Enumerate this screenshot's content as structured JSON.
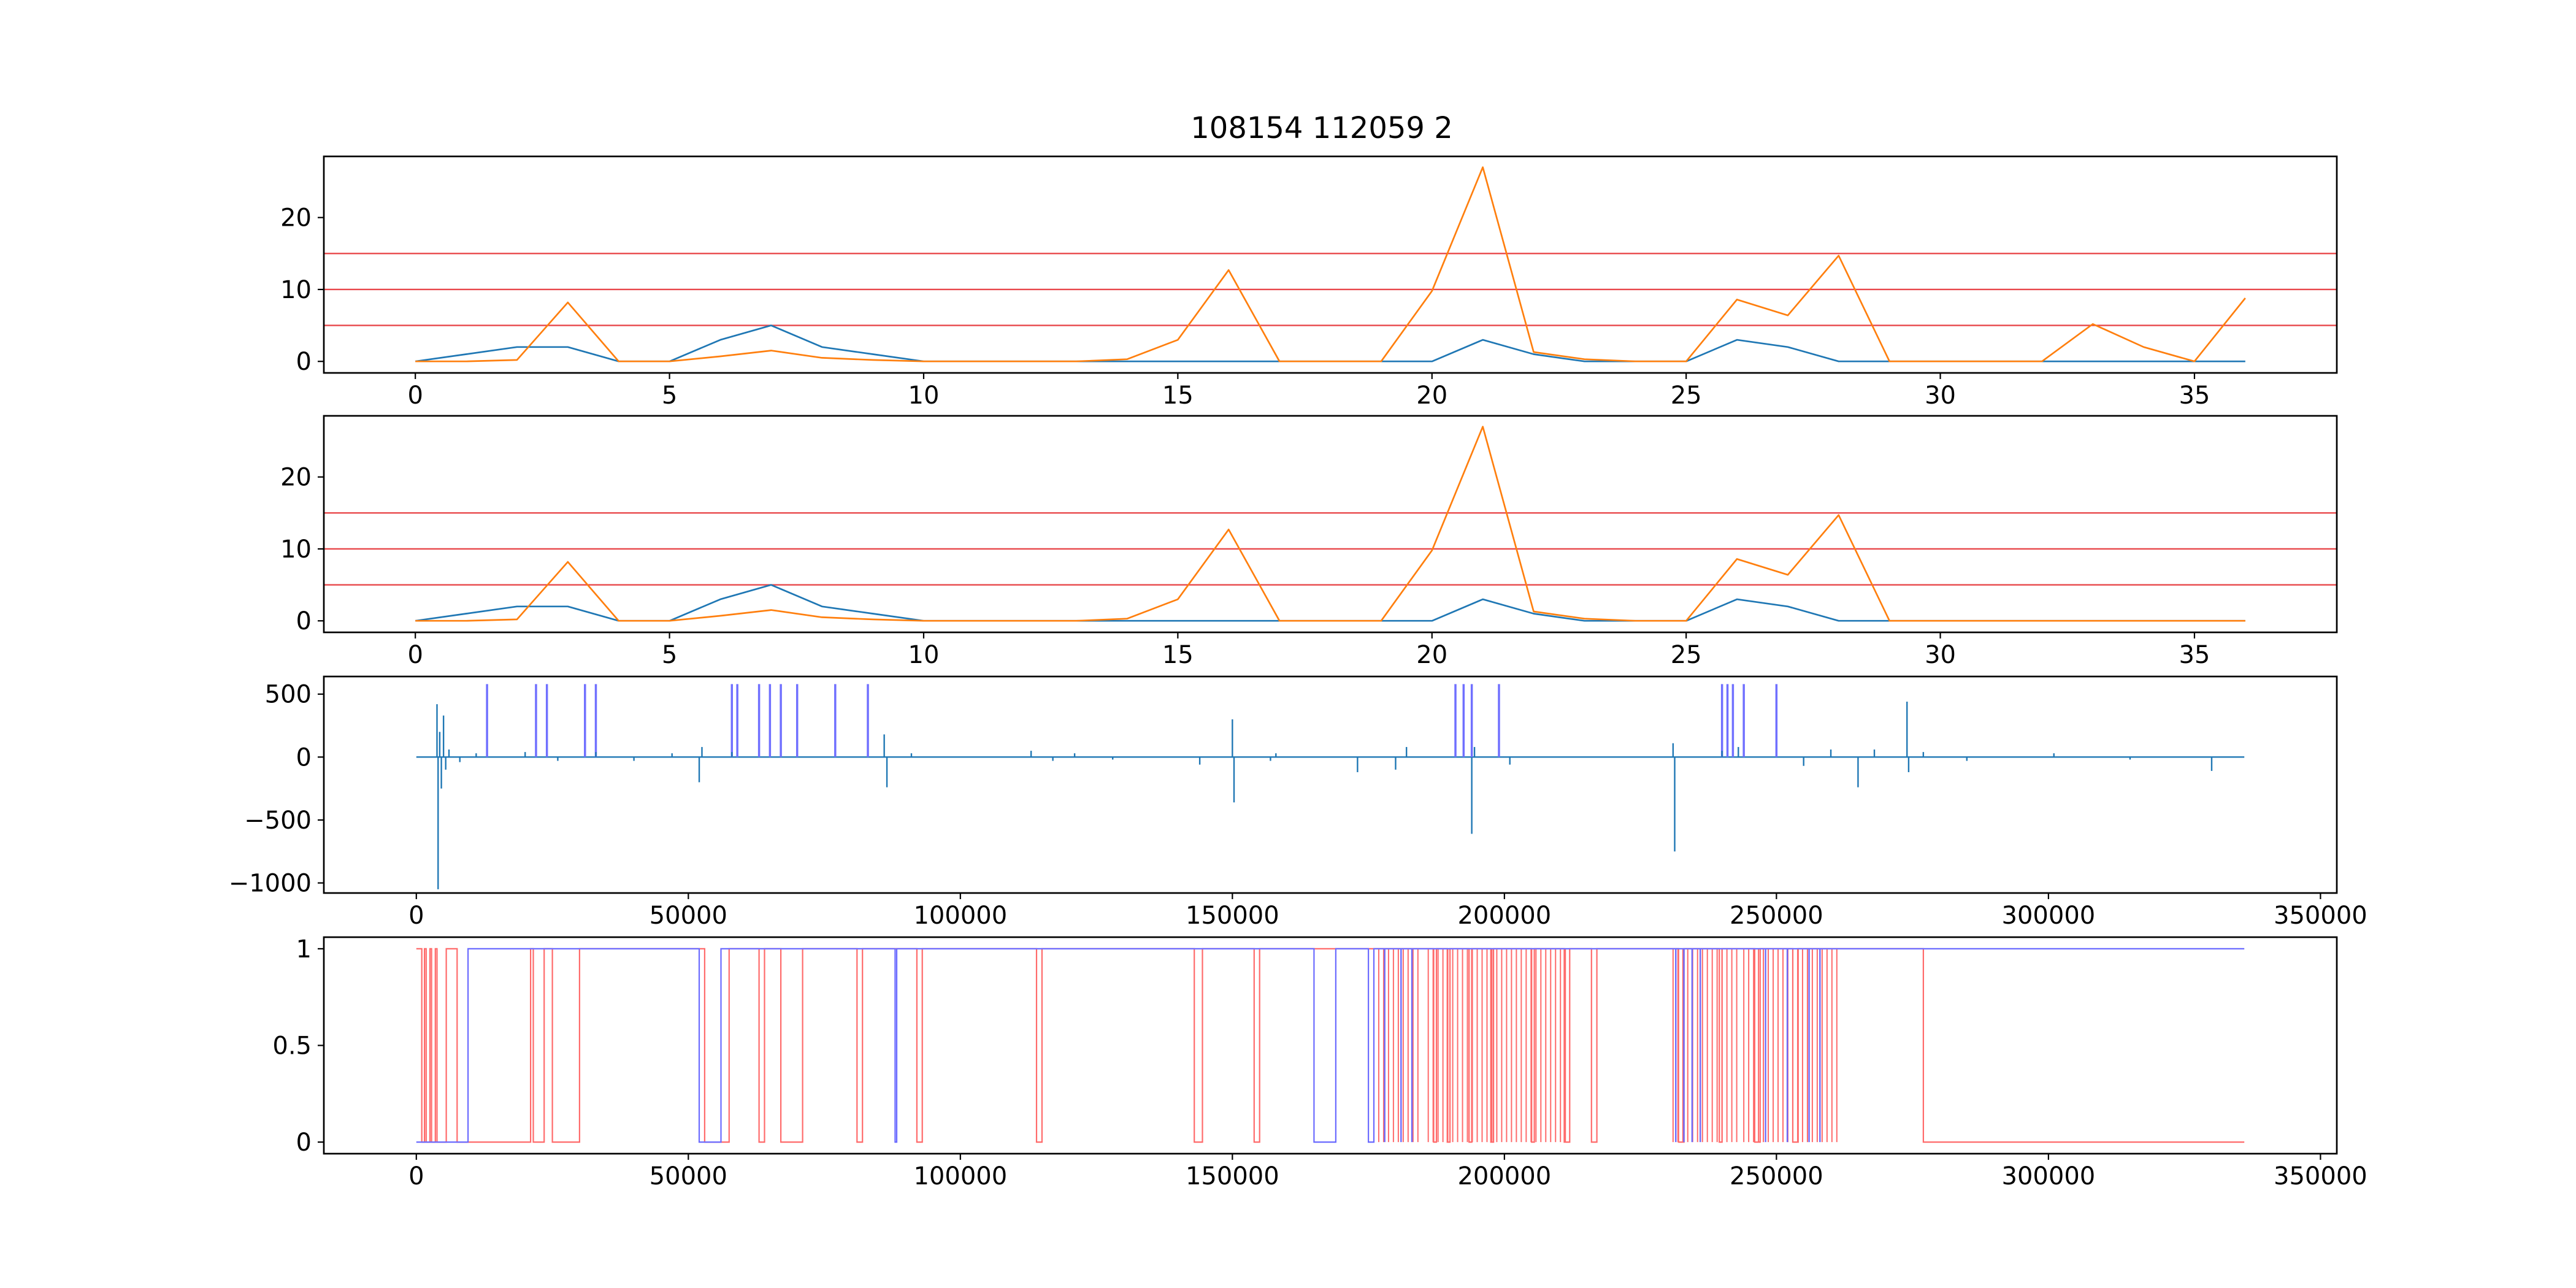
{
  "figure": {
    "title": "108154 112059 2"
  },
  "colors": {
    "blue": "#1f77b4",
    "orange": "#ff7f0e",
    "threshold": "#e8474a",
    "spike": "#7070ff",
    "step_red": "#ff6b6b",
    "step_blue": "#6b6bff"
  },
  "chart_data": [
    {
      "type": "line",
      "title": "108154 112059 2",
      "xlabel": "",
      "ylabel": "",
      "xlim": [
        -1.8,
        37.8
      ],
      "ylim": [
        -1.6,
        28.5
      ],
      "xticks": [
        0,
        5,
        10,
        15,
        20,
        25,
        30,
        35
      ],
      "yticks": [
        0,
        10,
        20
      ],
      "hlines": [
        5,
        10,
        15
      ],
      "x": [
        0,
        1,
        2,
        3,
        4,
        5,
        6,
        7,
        8,
        9,
        10,
        11,
        12,
        13,
        14,
        15,
        16,
        17,
        18,
        19,
        20,
        21,
        22,
        23,
        24,
        25,
        26,
        27,
        28,
        29,
        30,
        31,
        32,
        33,
        34,
        35,
        36
      ],
      "series": [
        {
          "color": "blue",
          "values": [
            0,
            1,
            2,
            2,
            0,
            0,
            3,
            5,
            2,
            1,
            0,
            0,
            0,
            0,
            0,
            0,
            0,
            0,
            0,
            0,
            0,
            3,
            1,
            0,
            0,
            0,
            3,
            2,
            0,
            0,
            0,
            0,
            0,
            0,
            0,
            0,
            0
          ]
        },
        {
          "color": "orange",
          "values": [
            0,
            0,
            0.2,
            8.2,
            0,
            0,
            0.7,
            1.5,
            0.5,
            0.2,
            0,
            0,
            0,
            0,
            0.3,
            3,
            12.7,
            0,
            0,
            0,
            9.8,
            27,
            1.3,
            0.3,
            0,
            0,
            8.6,
            6.4,
            14.7,
            0,
            0,
            0,
            0,
            5.2,
            2,
            0,
            8.8
          ]
        }
      ]
    },
    {
      "type": "line",
      "xlabel": "",
      "ylabel": "",
      "xlim": [
        -1.8,
        37.8
      ],
      "ylim": [
        -1.6,
        28.5
      ],
      "xticks": [
        0,
        5,
        10,
        15,
        20,
        25,
        30,
        35
      ],
      "yticks": [
        0,
        10,
        20
      ],
      "hlines": [
        5,
        10,
        15
      ],
      "x": [
        0,
        1,
        2,
        3,
        4,
        5,
        6,
        7,
        8,
        9,
        10,
        11,
        12,
        13,
        14,
        15,
        16,
        17,
        18,
        19,
        20,
        21,
        22,
        23,
        24,
        25,
        26,
        27,
        28,
        29,
        30,
        31,
        32,
        33,
        34,
        35,
        36
      ],
      "series": [
        {
          "color": "blue",
          "values": [
            0,
            1,
            2,
            2,
            0,
            0,
            3,
            5,
            2,
            1,
            0,
            0,
            0,
            0,
            0,
            0,
            0,
            0,
            0,
            0,
            0,
            3,
            1,
            0,
            0,
            0,
            3,
            2,
            0,
            0,
            0,
            0,
            0,
            0,
            0,
            0,
            0
          ]
        },
        {
          "color": "orange",
          "values": [
            0,
            0,
            0.2,
            8.2,
            0,
            0,
            0.7,
            1.5,
            0.5,
            0.2,
            0,
            0,
            0,
            0,
            0.3,
            3,
            12.7,
            0,
            0,
            0,
            9.8,
            27,
            1.3,
            0.3,
            0,
            0,
            8.6,
            6.4,
            14.7,
            0,
            0,
            0,
            0,
            0,
            0,
            0,
            0
          ]
        }
      ]
    },
    {
      "type": "line",
      "xlabel": "",
      "ylabel": "",
      "xlim": [
        -17000,
        353000
      ],
      "ylim": [
        -1080,
        640
      ],
      "xticks": [
        0,
        50000,
        100000,
        150000,
        200000,
        250000,
        300000,
        350000
      ],
      "yticks": [
        500,
        0,
        -500,
        -1000
      ],
      "xrange": [
        0,
        336000
      ],
      "signal": [
        [
          3800,
          420
        ],
        [
          4000,
          -1050
        ],
        [
          4300,
          200
        ],
        [
          4600,
          -250
        ],
        [
          5000,
          330
        ],
        [
          5400,
          -100
        ],
        [
          6000,
          60
        ],
        [
          8000,
          -40
        ],
        [
          11000,
          30
        ],
        [
          20000,
          40
        ],
        [
          26000,
          -30
        ],
        [
          33000,
          40
        ],
        [
          40000,
          -30
        ],
        [
          47000,
          30
        ],
        [
          52000,
          -200
        ],
        [
          52500,
          80
        ],
        [
          58000,
          40
        ],
        [
          86000,
          180
        ],
        [
          86500,
          -240
        ],
        [
          91000,
          30
        ],
        [
          113000,
          50
        ],
        [
          117000,
          -30
        ],
        [
          121000,
          30
        ],
        [
          128000,
          -20
        ],
        [
          144000,
          -60
        ],
        [
          150000,
          300
        ],
        [
          150300,
          -360
        ],
        [
          157000,
          -30
        ],
        [
          158000,
          30
        ],
        [
          173000,
          -120
        ],
        [
          180000,
          -100
        ],
        [
          182000,
          80
        ],
        [
          194000,
          -610
        ],
        [
          194500,
          80
        ],
        [
          201000,
          -60
        ],
        [
          231000,
          110
        ],
        [
          231300,
          -750
        ],
        [
          240000,
          50
        ],
        [
          243000,
          80
        ],
        [
          255000,
          -70
        ],
        [
          260000,
          60
        ],
        [
          265000,
          -240
        ],
        [
          268000,
          60
        ],
        [
          274000,
          440
        ],
        [
          274300,
          -120
        ],
        [
          277000,
          40
        ],
        [
          285000,
          -30
        ],
        [
          301000,
          30
        ],
        [
          315000,
          -20
        ],
        [
          330000,
          -110
        ]
      ],
      "spikes": [
        {
          "x": 13000,
          "y": 580
        },
        {
          "x": 22000,
          "y": 580
        },
        {
          "x": 24000,
          "y": 580
        },
        {
          "x": 31000,
          "y": 580
        },
        {
          "x": 33000,
          "y": 580
        },
        {
          "x": 58000,
          "y": 580
        },
        {
          "x": 59000,
          "y": 580
        },
        {
          "x": 63000,
          "y": 580
        },
        {
          "x": 65000,
          "y": 580
        },
        {
          "x": 67000,
          "y": 580
        },
        {
          "x": 70000,
          "y": 580
        },
        {
          "x": 77000,
          "y": 580
        },
        {
          "x": 83000,
          "y": 580
        },
        {
          "x": 191000,
          "y": 580
        },
        {
          "x": 192500,
          "y": 580
        },
        {
          "x": 194000,
          "y": 580
        },
        {
          "x": 199000,
          "y": 580
        },
        {
          "x": 240000,
          "y": 580
        },
        {
          "x": 241000,
          "y": 580
        },
        {
          "x": 242000,
          "y": 580
        },
        {
          "x": 244000,
          "y": 580
        },
        {
          "x": 250000,
          "y": 580
        }
      ]
    },
    {
      "type": "line",
      "xlabel": "",
      "ylabel": "",
      "xlim": [
        -17000,
        353000
      ],
      "ylim": [
        -0.06,
        1.06
      ],
      "xticks": [
        0,
        50000,
        100000,
        150000,
        200000,
        250000,
        300000,
        350000
      ],
      "yticks": [
        0.0,
        0.5,
        1.0
      ],
      "xrange": [
        0,
        336000
      ],
      "red_step": {
        "segments": [
          [
            0,
            1000,
            1
          ],
          [
            1000,
            1500,
            0
          ],
          [
            1500,
            1800,
            1
          ],
          [
            1800,
            2500,
            0
          ],
          [
            2500,
            2800,
            1
          ],
          [
            2800,
            3500,
            0
          ],
          [
            3500,
            3800,
            1
          ],
          [
            3800,
            5500,
            0
          ],
          [
            5500,
            7500,
            1
          ],
          [
            7500,
            21000,
            0
          ],
          [
            21000,
            21500,
            1
          ],
          [
            21500,
            23500,
            0
          ],
          [
            23500,
            25000,
            1
          ],
          [
            25000,
            30000,
            0
          ],
          [
            30000,
            53000,
            1
          ],
          [
            53000,
            57500,
            0
          ],
          [
            57500,
            63000,
            1
          ],
          [
            63000,
            64000,
            0
          ],
          [
            64000,
            67000,
            1
          ],
          [
            67000,
            71000,
            0
          ],
          [
            71000,
            81000,
            1
          ],
          [
            81000,
            82000,
            0
          ],
          [
            82000,
            92000,
            1
          ],
          [
            92000,
            93000,
            0
          ],
          [
            93000,
            114000,
            1
          ],
          [
            114000,
            115000,
            0
          ],
          [
            115000,
            143000,
            1
          ],
          [
            143000,
            144500,
            0
          ],
          [
            144500,
            154000,
            1
          ],
          [
            154000,
            155000,
            0
          ],
          [
            155000,
            187000,
            1
          ],
          [
            187000,
            187500,
            0
          ],
          [
            187500,
            189500,
            1
          ],
          [
            189500,
            190000,
            0
          ],
          [
            190000,
            193500,
            1
          ],
          [
            193500,
            194000,
            0
          ],
          [
            194000,
            197500,
            1
          ],
          [
            197500,
            198000,
            0
          ],
          [
            198000,
            205000,
            1
          ],
          [
            205000,
            205500,
            0
          ],
          [
            205500,
            211000,
            1
          ],
          [
            211000,
            212000,
            0
          ],
          [
            212000,
            216000,
            1
          ],
          [
            216000,
            217000,
            0
          ],
          [
            217000,
            232000,
            1
          ],
          [
            232000,
            233000,
            0
          ],
          [
            233000,
            239500,
            1
          ],
          [
            239500,
            240000,
            0
          ],
          [
            240000,
            246000,
            1
          ],
          [
            246000,
            247000,
            0
          ],
          [
            247000,
            253000,
            1
          ],
          [
            253000,
            254000,
            0
          ],
          [
            254000,
            264000,
            1
          ],
          [
            264000,
            277000,
            1
          ],
          [
            277000,
            336000,
            0
          ]
        ],
        "dense": [
          [
            176000,
            185000
          ],
          [
            186000,
            212000
          ],
          [
            231000,
            243000
          ],
          [
            244000,
            262000
          ]
        ]
      },
      "blue_step": {
        "segments": [
          [
            0,
            9500,
            0
          ],
          [
            9500,
            52000,
            1
          ],
          [
            52000,
            56000,
            0
          ],
          [
            56000,
            88000,
            1
          ],
          [
            88000,
            88300,
            0
          ],
          [
            88300,
            165000,
            1
          ],
          [
            165000,
            169000,
            0
          ],
          [
            169000,
            175000,
            1
          ],
          [
            175000,
            176000,
            0
          ],
          [
            176000,
            336000,
            1
          ]
        ],
        "dips": [
          178000,
          181000,
          183000,
          231500,
          233000,
          234500,
          236000,
          248000,
          252000,
          256000,
          258000
        ]
      }
    }
  ]
}
